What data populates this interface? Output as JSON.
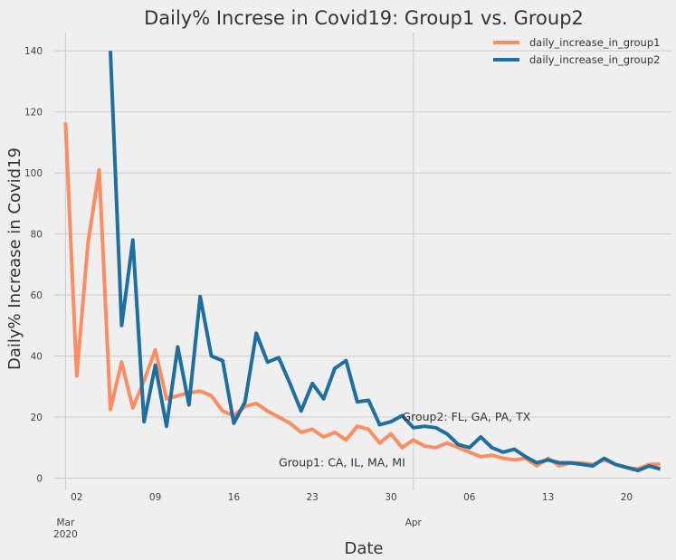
{
  "chart_data": {
    "type": "line",
    "title": "Daily% Increse in Covid19: Group1 vs. Group2",
    "xlabel": "Date",
    "ylabel": "Daily% Increase in Covid19",
    "ylim": [
      -4,
      146
    ],
    "yticks": [
      0,
      20,
      40,
      60,
      80,
      100,
      120,
      140
    ],
    "xlim": [
      "2020-02-29",
      "2020-04-24"
    ],
    "xticks": [
      {
        "date": "2020-03-02",
        "label": "02"
      },
      {
        "date": "2020-03-09",
        "label": "09"
      },
      {
        "date": "2020-03-16",
        "label": "16"
      },
      {
        "date": "2020-03-23",
        "label": "23"
      },
      {
        "date": "2020-03-30",
        "label": "30"
      },
      {
        "date": "2020-04-06",
        "label": "06"
      },
      {
        "date": "2020-04-13",
        "label": "13"
      },
      {
        "date": "2020-04-20",
        "label": "20"
      }
    ],
    "month_labels": [
      {
        "date": "2020-03-01",
        "label": "Mar",
        "year": "2020"
      },
      {
        "date": "2020-04-01",
        "label": "Apr",
        "year": ""
      }
    ],
    "grid": true,
    "legend_position": "top-right",
    "x_start": "2020-03-01",
    "series": [
      {
        "name": "daily_increase_in_group1",
        "color": "#fc8d62",
        "x_start": "2020-03-01",
        "values": [
          116.5,
          33.5,
          77,
          101,
          22.5,
          38,
          23,
          32,
          42,
          26,
          27,
          28,
          28.5,
          27,
          22,
          20.5,
          23.5,
          24.5,
          22,
          20,
          18,
          15,
          16,
          13.5,
          15,
          12.5,
          17,
          16,
          11.5,
          14.5,
          10,
          12.5,
          10.5,
          10,
          11.5,
          10,
          8.5,
          7,
          7.5,
          6.5,
          6,
          6.5,
          4,
          6.5,
          4,
          5,
          5,
          4.5,
          6,
          4.5,
          3.5,
          3,
          4.5,
          4.5
        ]
      },
      {
        "name": "daily_increase_in_group2",
        "color": "#1f6f9e",
        "x_start": "2020-03-05",
        "values": [
          140,
          50,
          78,
          18.5,
          37,
          17,
          43,
          24,
          59.5,
          40,
          38.5,
          18,
          25,
          47.5,
          38,
          39.5,
          31,
          22,
          31,
          26,
          36,
          38.5,
          25,
          25.5,
          17.5,
          18.5,
          20.5,
          16.5,
          17,
          16.5,
          14.5,
          11,
          10,
          13.5,
          10,
          8.5,
          9.5,
          7,
          5,
          6,
          5,
          5,
          4.5,
          4,
          6.5,
          4.5,
          3.5,
          2.5,
          4,
          3
        ]
      }
    ],
    "annotations": [
      {
        "text": "Group2: FL, GA, PA, TX",
        "date": "2020-03-31",
        "y": 20
      },
      {
        "text": "Group1: CA, IL, MA, MI",
        "date": "2020-03-20",
        "y": 5
      }
    ]
  }
}
